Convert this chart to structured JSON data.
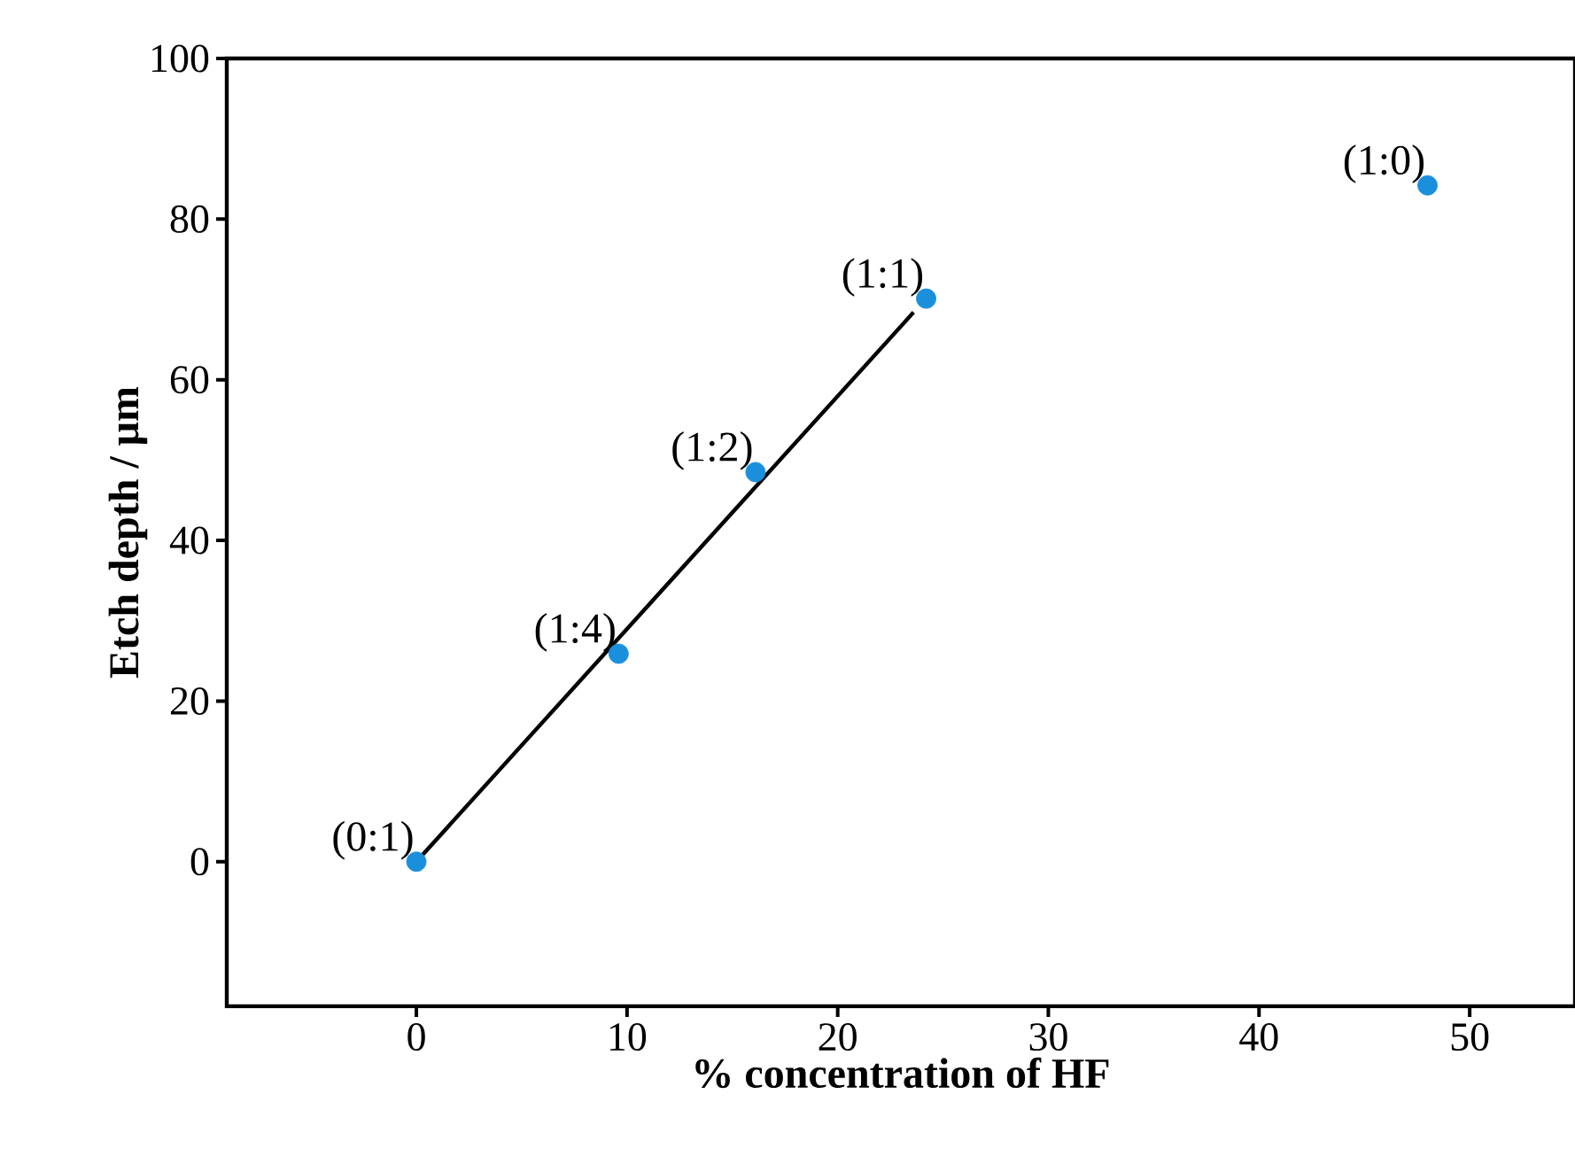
{
  "chart_data": {
    "type": "scatter",
    "xlabel": "% concentration of HF",
    "ylabel": "Etch depth / μm",
    "xlim": [
      -9,
      55
    ],
    "ylim": [
      -18,
      100
    ],
    "xticks": [
      0,
      10,
      20,
      30,
      40,
      50
    ],
    "yticks": [
      0,
      20,
      40,
      60,
      80,
      100
    ],
    "grid": false,
    "marker": "circle",
    "series": [
      {
        "color": "#1a8fdc",
        "x": [
          0,
          9.6,
          16.1,
          24.2,
          48.0
        ],
        "values": [
          0,
          25.9,
          48.5,
          70.1,
          84.2
        ]
      },
      {
        "type": "line",
        "color": "#000000",
        "line_style": "solid",
        "marker": "none",
        "x": [
          0,
          23.6
        ],
        "values": [
          0,
          68.4
        ]
      }
    ],
    "annotations": [
      {
        "text": "(0:1)",
        "x": 0,
        "y": 0
      },
      {
        "text": "(1:4)",
        "x": 9.6,
        "y": 25.9
      },
      {
        "text": "(1:2)",
        "x": 16.1,
        "y": 48.5
      },
      {
        "text": "(1:1)",
        "x": 24.2,
        "y": 70.1
      },
      {
        "text": "(1:0)",
        "x": 48.0,
        "y": 84.2
      }
    ]
  }
}
